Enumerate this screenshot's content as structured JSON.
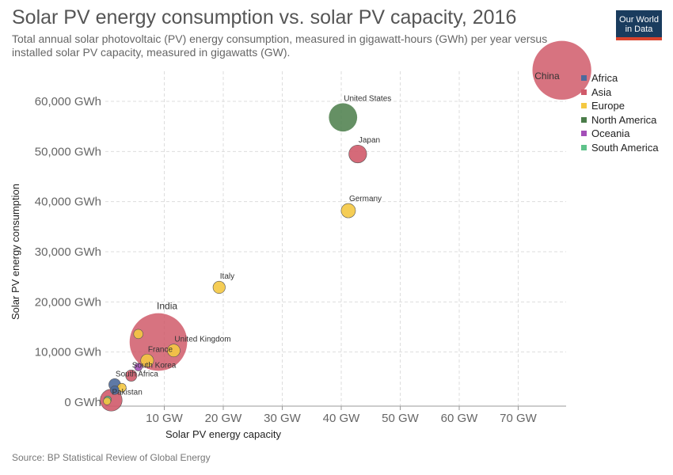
{
  "header": {
    "title": "Solar PV energy consumption vs. solar PV capacity, 2016",
    "subtitle": "Total annual solar photovoltaic (PV) energy consumption, measured in gigawatt-hours (GWh) per year versus installed solar PV capacity, measured in gigawatts (GW)."
  },
  "logo": {
    "line1": "Our World",
    "line2": "in Data",
    "bg_color": "#1a3c5e",
    "accent_color": "#d9442d"
  },
  "footer": {
    "source": "Source: BP Statistical Review of Global Energy"
  },
  "legend": {
    "items": [
      {
        "label": "Africa",
        "color": "#4c6a9c"
      },
      {
        "label": "Asia",
        "color": "#d05a6a"
      },
      {
        "label": "Europe",
        "color": "#f4c842"
      },
      {
        "label": "North America",
        "color": "#4a7c49"
      },
      {
        "label": "Oceania",
        "color": "#a44fb8"
      },
      {
        "label": "South America",
        "color": "#5ec28a"
      }
    ]
  },
  "chart_data": {
    "type": "scatter",
    "title": "Solar PV energy consumption vs. solar PV capacity, 2016",
    "xlabel": "Solar PV energy capacity",
    "ylabel": "Solar PV energy consumption",
    "xlim": [
      0,
      78
    ],
    "ylim": [
      0,
      68000
    ],
    "x_ticks": [
      {
        "value": 10,
        "label": "10 GW"
      },
      {
        "value": 20,
        "label": "20 GW"
      },
      {
        "value": 30,
        "label": "30 GW"
      },
      {
        "value": 40,
        "label": "40 GW"
      },
      {
        "value": 50,
        "label": "50 GW"
      },
      {
        "value": 60,
        "label": "60 GW"
      },
      {
        "value": 70,
        "label": "70 GW"
      }
    ],
    "y_ticks": [
      {
        "value": 0,
        "label": "0 GWh"
      },
      {
        "value": 10000,
        "label": "10,000 GWh"
      },
      {
        "value": 20000,
        "label": "20,000 GWh"
      },
      {
        "value": 30000,
        "label": "30,000 GWh"
      },
      {
        "value": 40000,
        "label": "40,000 GWh"
      },
      {
        "value": 50000,
        "label": "50,000 GWh"
      },
      {
        "value": 60000,
        "label": "60,000 GWh"
      }
    ],
    "grid": true,
    "legend_position": "right",
    "points": [
      {
        "label": "China",
        "region": "Asia",
        "x": 77.4,
        "y": 66200,
        "size": 1380
      },
      {
        "label": "United States",
        "region": "North America",
        "x": 40.3,
        "y": 56800,
        "size": 320
      },
      {
        "label": "Japan",
        "region": "Asia",
        "x": 42.8,
        "y": 49500,
        "size": 127
      },
      {
        "label": "Germany",
        "region": "Europe",
        "x": 41.2,
        "y": 38200,
        "size": 82
      },
      {
        "label": "Italy",
        "region": "Europe",
        "x": 19.3,
        "y": 22900,
        "size": 60
      },
      {
        "label": "India",
        "region": "Asia",
        "x": 9.0,
        "y": 12000,
        "size": 1320
      },
      {
        "label": "United Kingdom",
        "region": "Europe",
        "x": 11.6,
        "y": 10300,
        "size": 65
      },
      {
        "label": "France",
        "region": "Europe",
        "x": 7.1,
        "y": 8300,
        "size": 67
      },
      {
        "label": "",
        "region": "Europe",
        "x": 5.6,
        "y": 13600,
        "size": 35
      },
      {
        "label": "South Korea",
        "region": "Asia",
        "x": 4.4,
        "y": 5300,
        "size": 51
      },
      {
        "label": "",
        "region": "Oceania",
        "x": 5.6,
        "y": 7000,
        "size": 24
      },
      {
        "label": "South Africa",
        "region": "Africa",
        "x": 1.6,
        "y": 3500,
        "size": 56
      },
      {
        "label": "",
        "region": "Europe",
        "x": 2.8,
        "y": 2900,
        "size": 30
      },
      {
        "label": "",
        "region": "Africa",
        "x": 1.6,
        "y": 2400,
        "size": 30
      },
      {
        "label": "Pakistan",
        "region": "Asia",
        "x": 1.0,
        "y": 400,
        "size": 190
      },
      {
        "label": "",
        "region": "South America",
        "x": 0.4,
        "y": 500,
        "size": 22
      },
      {
        "label": "",
        "region": "Europe",
        "x": 0.3,
        "y": 200,
        "size": 22
      }
    ]
  }
}
